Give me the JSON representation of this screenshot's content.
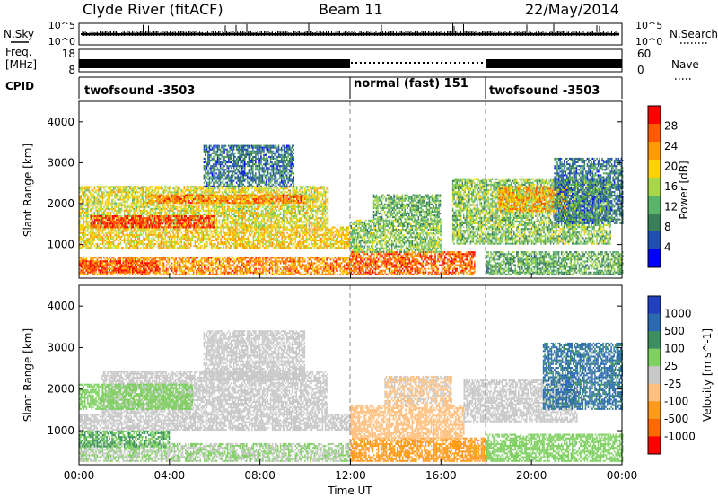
{
  "header": {
    "site": "Clyde River (fitACF)",
    "beam": "Beam 11",
    "date": "22/May/2014"
  },
  "noise_panel": {
    "left_label": "N.Sky",
    "right_label": "N.Search",
    "left_ticks": [
      "10^5",
      "10^0"
    ],
    "right_ticks": [
      "10^5",
      "10^0"
    ]
  },
  "freq_panel": {
    "left_label_line1": "Freq.",
    "left_label_line2": "[MHz]",
    "right_label": "Nave",
    "left_ticks": [
      "18",
      "8"
    ],
    "right_ticks": [
      "60",
      "0"
    ]
  },
  "cpid": {
    "label": "CPID",
    "segments": [
      {
        "start_h": 0,
        "end_h": 12,
        "text": "twofsound -3503"
      },
      {
        "start_h": 12,
        "end_h": 18,
        "text": "normal (fast) 151"
      },
      {
        "start_h": 18,
        "end_h": 24,
        "text": "twofsound -3503"
      }
    ]
  },
  "colors": {
    "power_scale": [
      "#0000ff",
      "#1f4fb0",
      "#3a7f5a",
      "#5ab46a",
      "#a8d84a",
      "#ffd200",
      "#ff9a00",
      "#ff5a00",
      "#ff0000"
    ],
    "velocity_scale": [
      "#ff0000",
      "#ff6a00",
      "#ff9a1a",
      "#ffc080",
      "#c8c8c8",
      "#7ed060",
      "#3c9060",
      "#2a6ab0",
      "#2040c0"
    ]
  },
  "chart_data": [
    {
      "type": "heatmap",
      "name": "power",
      "xlabel": "Time UT",
      "ylabel": "Slant Range [km]",
      "x_ticks": [
        "00:00",
        "04:00",
        "08:00",
        "12:00",
        "16:00",
        "20:00",
        "00:00"
      ],
      "xlim_hours": [
        0,
        24
      ],
      "ylim_km": [
        180,
        4500
      ],
      "y_ticks": [
        1000,
        2000,
        3000,
        4000
      ],
      "colorbar": {
        "label": "Power [dB]",
        "ticks": [
          4,
          8,
          12,
          16,
          20,
          24,
          28
        ],
        "range": [
          0,
          32
        ]
      },
      "dashed_lines_hours": [
        12,
        18
      ],
      "regions": [
        {
          "t0": 0.0,
          "t1": 12.0,
          "r0": 250,
          "r1": 700,
          "value": 24
        },
        {
          "t0": 0.0,
          "t1": 3.5,
          "r0": 300,
          "r1": 600,
          "value": 28
        },
        {
          "t0": 0.0,
          "t1": 12.0,
          "r0": 900,
          "r1": 1400,
          "value": 20
        },
        {
          "t0": 0.0,
          "t1": 11.0,
          "r0": 1400,
          "r1": 2400,
          "value": 18
        },
        {
          "t0": 0.5,
          "t1": 6.0,
          "r0": 1400,
          "r1": 1700,
          "value": 28
        },
        {
          "t0": 3.0,
          "t1": 10.0,
          "r0": 2000,
          "r1": 2200,
          "value": 24
        },
        {
          "t0": 5.5,
          "t1": 9.5,
          "r0": 2400,
          "r1": 3400,
          "value": 8
        },
        {
          "t0": 12.0,
          "t1": 17.5,
          "r0": 250,
          "r1": 800,
          "value": 26
        },
        {
          "t0": 12.0,
          "t1": 16.0,
          "r0": 800,
          "r1": 1600,
          "value": 14
        },
        {
          "t0": 13.0,
          "t1": 16.0,
          "r0": 1600,
          "r1": 2200,
          "value": 12
        },
        {
          "t0": 18.0,
          "t1": 24.0,
          "r0": 250,
          "r1": 800,
          "value": 12
        },
        {
          "t0": 16.5,
          "t1": 23.5,
          "r0": 1000,
          "r1": 2600,
          "value": 14
        },
        {
          "t0": 18.5,
          "t1": 21.5,
          "r0": 1800,
          "r1": 2400,
          "value": 22
        },
        {
          "t0": 21.0,
          "t1": 24.0,
          "r0": 1500,
          "r1": 3100,
          "value": 8
        }
      ]
    },
    {
      "type": "heatmap",
      "name": "velocity",
      "xlabel": "Time UT",
      "ylabel": "Slant Range [km]",
      "x_ticks": [
        "00:00",
        "04:00",
        "08:00",
        "12:00",
        "16:00",
        "20:00",
        "00:00"
      ],
      "xlim_hours": [
        0,
        24
      ],
      "ylim_km": [
        180,
        4500
      ],
      "y_ticks": [
        1000,
        2000,
        3000,
        4000
      ],
      "colorbar": {
        "label": "Velocity [m s^-1]",
        "ticks": [
          "1000",
          "500",
          "100",
          "25",
          "-25",
          "-100",
          "-500",
          "-1000"
        ]
      },
      "dashed_lines_hours": [
        12,
        18
      ],
      "regions": [
        {
          "t0": 0.0,
          "t1": 12.0,
          "r0": 250,
          "r1": 700,
          "value": 25
        },
        {
          "t0": 0.0,
          "t1": 4.0,
          "r0": 600,
          "r1": 1000,
          "value": 100
        },
        {
          "t0": 0.0,
          "t1": 12.0,
          "r0": 1000,
          "r1": 1400,
          "value": 0
        },
        {
          "t0": 1.0,
          "t1": 11.0,
          "r0": 1400,
          "r1": 2400,
          "value": 0
        },
        {
          "t0": 0.0,
          "t1": 5.0,
          "r0": 1500,
          "r1": 2100,
          "value": 60
        },
        {
          "t0": 5.5,
          "t1": 10.0,
          "r0": 2200,
          "r1": 3400,
          "value": 0
        },
        {
          "t0": 12.0,
          "t1": 18.0,
          "r0": 250,
          "r1": 800,
          "value": -150
        },
        {
          "t0": 12.0,
          "t1": 17.0,
          "r0": 800,
          "r1": 1600,
          "value": -60
        },
        {
          "t0": 13.5,
          "t1": 16.5,
          "r0": 1600,
          "r1": 2300,
          "value": -30
        },
        {
          "t0": 18.0,
          "t1": 24.0,
          "r0": 250,
          "r1": 900,
          "value": 60
        },
        {
          "t0": 17.0,
          "t1": 22.0,
          "r0": 1200,
          "r1": 2200,
          "value": 0
        },
        {
          "t0": 20.5,
          "t1": 24.0,
          "r0": 1500,
          "r1": 3100,
          "value": 600
        }
      ]
    }
  ]
}
